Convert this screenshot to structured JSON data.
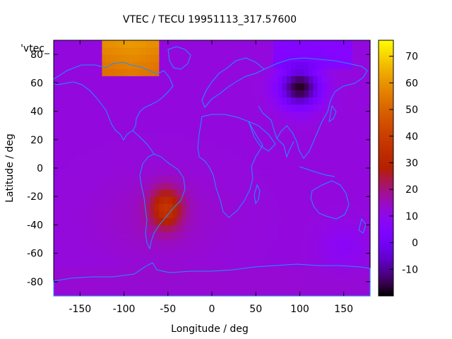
{
  "chart_data": {
    "type": "heatmap",
    "title": "VTEC / TECU 19951113_317.57600",
    "xlabel": "Longitude / deg",
    "ylabel": "Latitude / deg",
    "legend_label": "'vtec_",
    "xlim": [
      -180,
      180
    ],
    "ylim": [
      -90,
      90
    ],
    "x_ticks": [
      -150,
      -100,
      -50,
      0,
      50,
      100,
      150
    ],
    "y_ticks": [
      -80,
      -60,
      -40,
      -20,
      0,
      20,
      40,
      60,
      80
    ],
    "colorbar": {
      "range": [
        -20,
        76
      ],
      "ticks": [
        -10,
        0,
        10,
        20,
        30,
        40,
        50,
        60,
        70
      ],
      "palette": "gnuplot-pm3d"
    },
    "background_value": 12,
    "features": [
      {
        "name": "north-america-arctic-maximum",
        "lon": [
          -125,
          -60
        ],
        "lat": [
          67,
          90
        ],
        "value": 55
      },
      {
        "name": "south-america-enhancement",
        "lon": -52,
        "lat": -28,
        "value": 34
      },
      {
        "name": "north-polar-depletion-asia",
        "lon": 100,
        "lat": 57,
        "value": -18
      },
      {
        "name": "antarctic-band",
        "lon": [
          -180,
          180
        ],
        "lat": [
          -90,
          -70
        ],
        "value": 14
      },
      {
        "name": "south-pacific-mild-low",
        "lon": 150,
        "lat": -55,
        "value": 8
      }
    ]
  }
}
